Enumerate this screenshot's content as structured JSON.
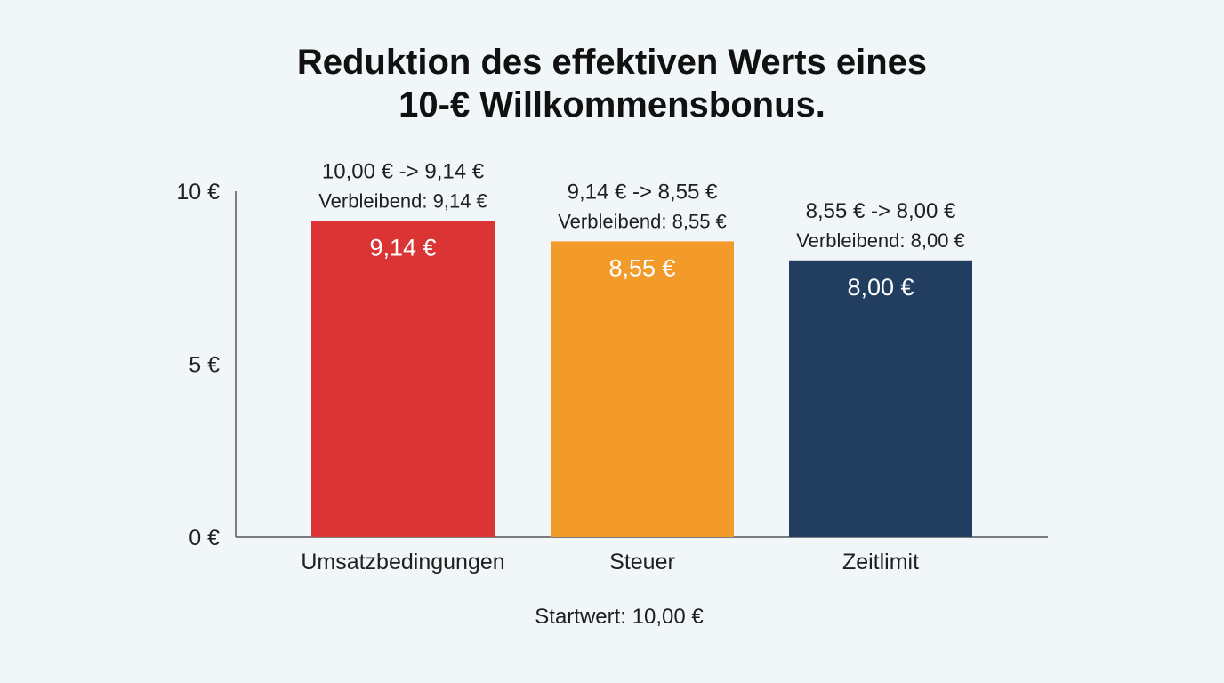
{
  "chart_data": {
    "type": "bar",
    "title_lines": [
      "Reduktion des effektiven Werts eines",
      "10-€ Willkommensbonus."
    ],
    "categories": [
      "Umsatzbedingungen",
      "Steuer",
      "Zeitlimit"
    ],
    "values": [
      9.14,
      8.55,
      8.0
    ],
    "value_labels": [
      "9,14 €",
      "8,55 €",
      "8,00 €"
    ],
    "annotations": [
      {
        "change": "10,00 € -> 9,14 €",
        "remaining": "Verbleibend: 9,14 €"
      },
      {
        "change": "9,14 € -> 8,55 €",
        "remaining": "Verbleibend: 8,55 €"
      },
      {
        "change": "8,55 € -> 8,00 €",
        "remaining": "Verbleibend: 8,00 €"
      }
    ],
    "colors": [
      "#db3434",
      "#f29a2a",
      "#213d60"
    ],
    "yticks": [
      0,
      5,
      10
    ],
    "ytick_labels": [
      "0 €",
      "5 €",
      "10 €"
    ],
    "ylim": [
      0,
      10
    ],
    "grid": false,
    "footnote": "Startwert: 10,00 €"
  }
}
